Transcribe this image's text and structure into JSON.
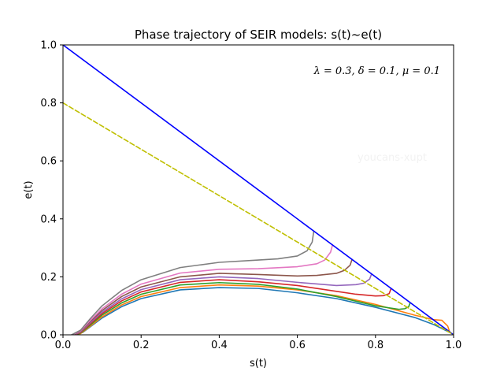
{
  "chart_data": {
    "type": "line",
    "title": "Phase trajectory of SEIR models: s(t)~e(t)",
    "xlabel": "s(t)",
    "ylabel": "e(t)",
    "xlim": [
      0,
      1
    ],
    "ylim": [
      0,
      1
    ],
    "xticks": [
      "0.0",
      "0.2",
      "0.4",
      "0.6",
      "0.8",
      "1.0"
    ],
    "yticks": [
      "0.0",
      "0.2",
      "0.4",
      "0.6",
      "0.8",
      "1.0"
    ],
    "annotation": "λ = 0.3, δ = 0.1, μ = 0.1",
    "watermark": "youcans-xupt",
    "grid": false,
    "colors": {
      "boundary": "#0000ff",
      "threshold": "#bfbf00",
      "trajectories": [
        "#1f77b4",
        "#ff7f0e",
        "#2ca02c",
        "#d62728",
        "#9467bd",
        "#8c564b",
        "#e377c2",
        "#7f7f7f"
      ]
    },
    "series": [
      {
        "x": [
          0,
          1
        ],
        "y": [
          1,
          0
        ],
        "style": "solid"
      },
      {
        "x": [
          0,
          1
        ],
        "y": [
          0.8,
          0
        ],
        "style": "dashed"
      },
      {
        "x": [
          0.995,
          0.95,
          0.9,
          0.8,
          0.7,
          0.6,
          0.5,
          0.4,
          0.3,
          0.2,
          0.15,
          0.1,
          0.07,
          0.05,
          0.035
        ],
        "y": [
          0.005,
          0.035,
          0.06,
          0.095,
          0.125,
          0.145,
          0.16,
          0.163,
          0.155,
          0.125,
          0.097,
          0.058,
          0.028,
          0.008,
          0
        ]
      },
      {
        "x": [
          0.99,
          0.985,
          0.97,
          0.95,
          0.9,
          0.8,
          0.7,
          0.6,
          0.5,
          0.4,
          0.3,
          0.2,
          0.15,
          0.1,
          0.07,
          0.045,
          0.035
        ],
        "y": [
          0.01,
          0.03,
          0.05,
          0.052,
          0.068,
          0.105,
          0.135,
          0.155,
          0.168,
          0.172,
          0.163,
          0.132,
          0.103,
          0.062,
          0.03,
          0.004,
          0
        ]
      },
      {
        "x": [
          0.888,
          0.885,
          0.875,
          0.86,
          0.8,
          0.7,
          0.6,
          0.5,
          0.4,
          0.3,
          0.2,
          0.15,
          0.1,
          0.07,
          0.045,
          0.032
        ],
        "y": [
          0.108,
          0.097,
          0.09,
          0.088,
          0.1,
          0.132,
          0.158,
          0.174,
          0.18,
          0.172,
          0.14,
          0.11,
          0.068,
          0.034,
          0.006,
          0
        ]
      },
      {
        "x": [
          0.84,
          0.835,
          0.82,
          0.8,
          0.75,
          0.7,
          0.6,
          0.5,
          0.4,
          0.3,
          0.2,
          0.15,
          0.1,
          0.07,
          0.045,
          0.03
        ],
        "y": [
          0.16,
          0.142,
          0.135,
          0.134,
          0.14,
          0.15,
          0.17,
          0.183,
          0.19,
          0.181,
          0.148,
          0.117,
          0.073,
          0.038,
          0.008,
          0
        ]
      },
      {
        "x": [
          0.79,
          0.785,
          0.77,
          0.75,
          0.7,
          0.6,
          0.5,
          0.4,
          0.3,
          0.2,
          0.15,
          0.1,
          0.07,
          0.045,
          0.028
        ],
        "y": [
          0.21,
          0.192,
          0.178,
          0.173,
          0.17,
          0.181,
          0.194,
          0.2,
          0.19,
          0.156,
          0.124,
          0.078,
          0.042,
          0.01,
          0
        ]
      },
      {
        "x": [
          0.74,
          0.735,
          0.72,
          0.7,
          0.65,
          0.6,
          0.5,
          0.4,
          0.3,
          0.2,
          0.15,
          0.1,
          0.07,
          0.045,
          0.026
        ],
        "y": [
          0.26,
          0.24,
          0.222,
          0.212,
          0.205,
          0.203,
          0.208,
          0.212,
          0.2,
          0.165,
          0.132,
          0.084,
          0.046,
          0.012,
          0
        ]
      },
      {
        "x": [
          0.69,
          0.685,
          0.67,
          0.65,
          0.6,
          0.5,
          0.4,
          0.3,
          0.2,
          0.15,
          0.1,
          0.07,
          0.045,
          0.024
        ],
        "y": [
          0.31,
          0.285,
          0.258,
          0.245,
          0.235,
          0.228,
          0.226,
          0.213,
          0.175,
          0.14,
          0.09,
          0.05,
          0.014,
          0
        ]
      },
      {
        "x": [
          0.642,
          0.638,
          0.625,
          0.6,
          0.55,
          0.5,
          0.4,
          0.3,
          0.2,
          0.15,
          0.1,
          0.07,
          0.045,
          0.022
        ],
        "y": [
          0.358,
          0.32,
          0.29,
          0.272,
          0.262,
          0.258,
          0.25,
          0.232,
          0.19,
          0.153,
          0.1,
          0.056,
          0.016,
          0
        ]
      }
    ]
  }
}
